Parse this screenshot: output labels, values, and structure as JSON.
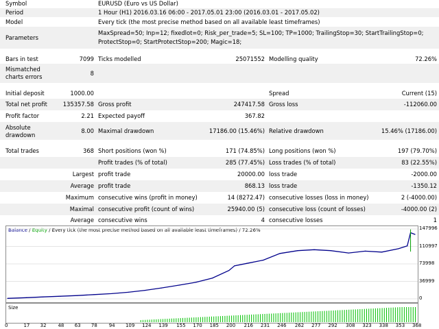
{
  "report": {
    "symbol_label": "Symbol",
    "symbol_value": "EURUSD (Euro vs US Dollar)",
    "period_label": "Period",
    "period_value": "1 Hour (H1) 2016.03.16 06:00 - 2017.05.01 23:00 (2016.03.01 - 2017.05.02)",
    "model_label": "Model",
    "model_value": "Every tick (the most precise method based on all available least timeframes)",
    "parameters_label": "Parameters",
    "parameters_line1": "MaxSpread=50; Inp=12; fixedlot=0; Risk_per_trade=5; SL=100; TP=1000; TrailingStop=30; StartTrailingStop=0;",
    "parameters_line2": "ProtectStop=0; StartProtectStop=200; Magic=18;",
    "bars_label": "Bars in test",
    "bars_value": "7099",
    "ticks_label": "Ticks modelled",
    "ticks_value": "25071552",
    "quality_label": "Modelling quality",
    "quality_value": "72.26%",
    "mismatch_label_1": "Mismatched",
    "mismatch_label_2": "charts errors",
    "mismatch_value": "8",
    "deposit_label": "Initial deposit",
    "deposit_value": "1000.00",
    "spread_label": "Spread",
    "spread_value": "Current (15)",
    "netprofit_label": "Total net profit",
    "netprofit_value": "135357.58",
    "grossprofit_label": "Gross profit",
    "grossprofit_value": "247417.58",
    "grossloss_label": "Gross loss",
    "grossloss_value": "-112060.00",
    "pf_label": "Profit factor",
    "pf_value": "2.21",
    "ep_label": "Expected payoff",
    "ep_value": "367.82",
    "absdd_label_1": "Absolute",
    "absdd_label_2": "drawdown",
    "absdd_value": "8.00",
    "maxdd_label": "Maximal drawdown",
    "maxdd_value": "17186.00 (15.46%)",
    "reldd_label": "Relative drawdown",
    "reldd_value": "15.46% (17186.00)",
    "trades_label": "Total trades",
    "trades_value": "368",
    "short_label": "Short positions (won %)",
    "short_value": "171 (74.85%)",
    "long_label": "Long positions (won %)",
    "long_value": "197 (79.70%)",
    "pt_label": "Profit trades (% of total)",
    "pt_value": "285 (77.45%)",
    "lt_label": "Loss trades (% of total)",
    "lt_value": "83 (22.55%)",
    "largest_label": "Largest",
    "average_label": "Average",
    "maximum_label": "Maximum",
    "maximal_label": "Maximal",
    "average2_label": "Average",
    "lpt_label": "profit trade",
    "lpt_value": "20000.00",
    "llt_label": "loss trade",
    "llt_value": "-2000.00",
    "apt_label": "profit trade",
    "apt_value": "868.13",
    "alt_label": "loss trade",
    "alt_value": "-1350.12",
    "mcw_label": "consecutive wins (profit in money)",
    "mcw_value": "14 (8272.47)",
    "mcl_label": "consecutive losses (loss in money)",
    "mcl_value": "2 (-4000.00)",
    "mcp_label": "consecutive profit (count of wins)",
    "mcp_value": "25940.00 (5)",
    "mclc_label": "consecutive loss (count of losses)",
    "mclc_value": "-4000.00 (2)",
    "acw_label": "consecutive wins",
    "acw_value": "4",
    "acl_label": "consecutive losses",
    "acl_value": "1"
  },
  "graph": {
    "caption_balance": "Balance",
    "caption_sep": " / ",
    "caption_equity": "Equity",
    "caption_rest": " / Every tick (the most precise method based on all available least timeframes) / 72.26%",
    "size_label": "Size",
    "balance_color": "#00008b",
    "equity_color": "#00a000",
    "size_color": "#00c000",
    "y_ticks": [
      "147996",
      "110997",
      "73998",
      "36999",
      "0"
    ],
    "x_ticks": [
      "0",
      "17",
      "32",
      "48",
      "63",
      "78",
      "94",
      "109",
      "124",
      "139",
      "155",
      "170",
      "185",
      "200",
      "216",
      "231",
      "246",
      "262",
      "277",
      "292",
      "308",
      "323",
      "338",
      "353",
      "368"
    ]
  },
  "chart_data": {
    "type": "line",
    "x_range": [
      0,
      368
    ],
    "ylim": [
      0,
      147996
    ],
    "series": [
      {
        "name": "Balance",
        "x": [
          0,
          17,
          32,
          48,
          63,
          78,
          94,
          109,
          124,
          139,
          155,
          170,
          185,
          200,
          205,
          216,
          231,
          246,
          262,
          277,
          292,
          308,
          323,
          338,
          353,
          361,
          364,
          368
        ],
        "y": [
          1000,
          2500,
          4000,
          5500,
          7000,
          9000,
          11000,
          14000,
          18000,
          23000,
          29000,
          35000,
          44000,
          60000,
          70000,
          75000,
          82000,
          96000,
          102000,
          104000,
          102000,
          97000,
          101000,
          99000,
          106000,
          112000,
          140000,
          136358
        ]
      }
    ]
  }
}
